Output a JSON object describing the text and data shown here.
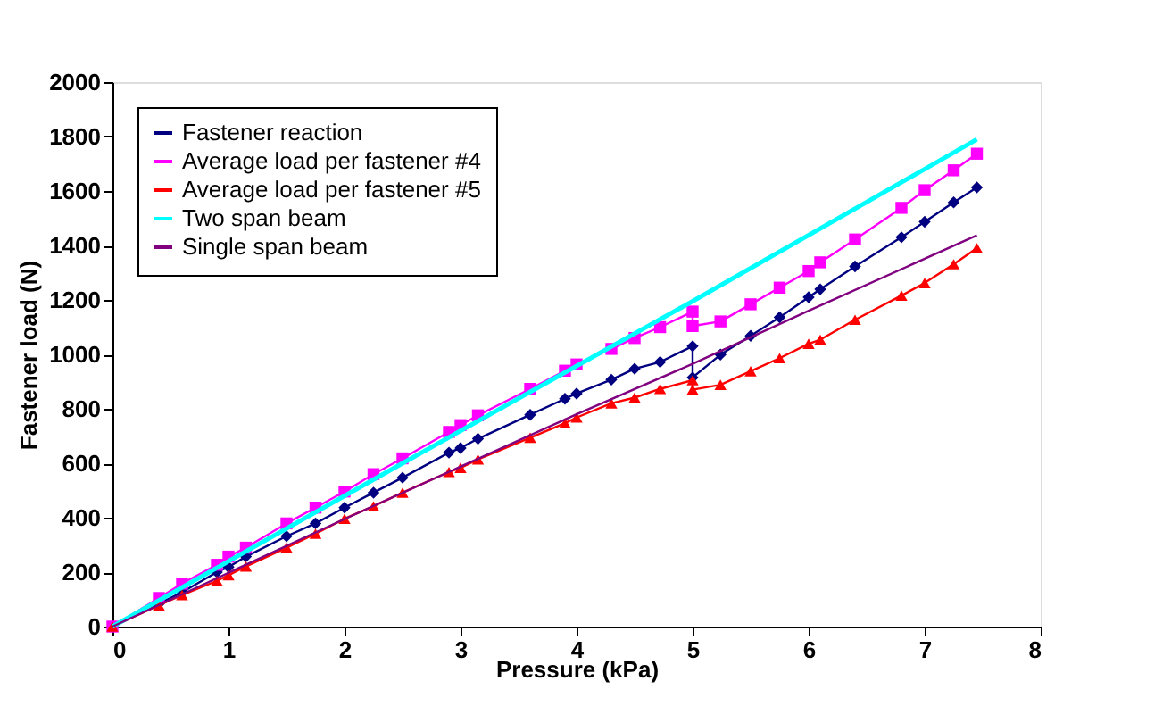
{
  "chart_data": {
    "type": "line",
    "xlabel": "Pressure (kPa)",
    "ylabel": "Fastener load (N)",
    "xlim": [
      0,
      8
    ],
    "xticks": [
      0,
      1,
      2,
      3,
      4,
      5,
      6,
      7,
      8
    ],
    "ylim": [
      0,
      2000
    ],
    "yticks": [
      0,
      200,
      400,
      600,
      800,
      1000,
      1200,
      1400,
      1600,
      1800,
      2000
    ],
    "grid": false,
    "legend": "top left",
    "x": [
      0,
      0.4,
      0.6,
      0.9,
      1.0,
      1.15,
      1.5,
      1.75,
      2.0,
      2.25,
      2.5,
      2.9,
      3.0,
      3.15,
      3.6,
      3.9,
      4.0,
      4.3,
      4.5,
      4.72,
      5.0,
      5.0,
      5.24,
      5.5,
      5.75,
      6.0,
      6.1,
      6.4,
      6.8,
      7.0,
      7.25,
      7.45
    ],
    "series": [
      {
        "name": "Fastener reaction",
        "color": "#000080",
        "marker": "diamond",
        "values": [
          0,
          84,
          126,
          200,
          219,
          257,
          332,
          379,
          437,
          492,
          547,
          639,
          656,
          690,
          778,
          837,
          856,
          907,
          947,
          972,
          1030,
          915,
          999,
          1068,
          1136,
          1210,
          1239,
          1323,
          1430,
          1487,
          1558,
          1613
        ]
      },
      {
        "name": "Average load per fastener #4",
        "color": "#ff00ff",
        "marker": "square",
        "values": [
          0,
          105,
          158,
          227,
          257,
          290,
          379,
          437,
          496,
          560,
          618,
          715,
          740,
          776,
          873,
          940,
          963,
          1020,
          1060,
          1100,
          1157,
          1104,
          1121,
          1184,
          1245,
          1306,
          1338,
          1422,
          1538,
          1603,
          1676,
          1737
        ]
      },
      {
        "name": "Average load per fastener #5",
        "color": "#ff0000",
        "marker": "triangle",
        "values": [
          0,
          78,
          116,
          168,
          189,
          221,
          290,
          341,
          396,
          442,
          492,
          568,
          583,
          614,
          694,
          747,
          768,
          820,
          841,
          873,
          905,
          870,
          888,
          938,
          986,
          1039,
          1054,
          1127,
          1216,
          1262,
          1331,
          1390
        ]
      },
      {
        "name": "Two span beam",
        "color": "#00ffff",
        "marker": "none",
        "x": [
          0,
          2.5,
          5.0,
          7.45
        ],
        "values": [
          0,
          600,
          1195,
          1790
        ]
      },
      {
        "name": "Single span beam",
        "color": "#800080",
        "marker": "none",
        "x": [
          0,
          2,
          4,
          5,
          6,
          7.45
        ],
        "values": [
          0,
          395,
          780,
          965,
          1160,
          1437
        ]
      }
    ]
  }
}
